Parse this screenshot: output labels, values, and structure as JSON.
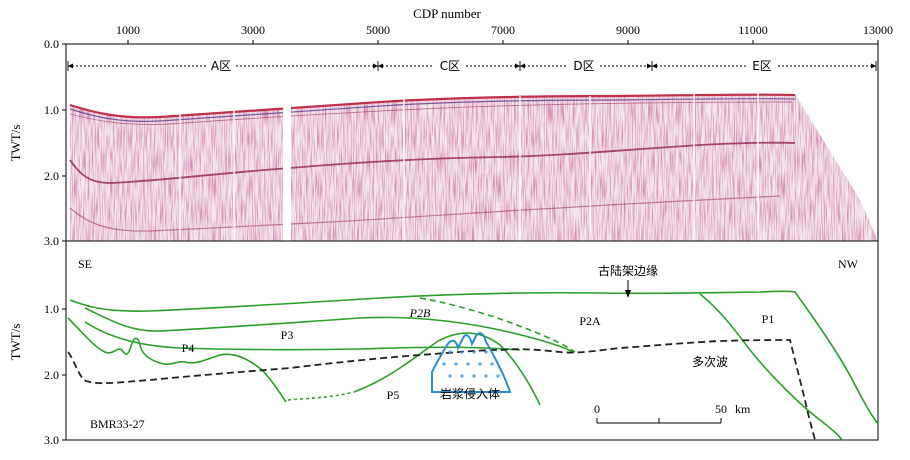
{
  "top_panel": {
    "x_axis_title": "CDP number",
    "x_ticks": [
      "1000",
      "3000",
      "5000",
      "7000",
      "9000",
      "11000",
      "13000"
    ],
    "y_axis_title": "TWT/s",
    "y_ticks": [
      "0.0",
      "1.0",
      "2.0",
      "3.0"
    ],
    "zones": [
      {
        "label": "A区"
      },
      {
        "label": "C区"
      },
      {
        "label": "D区"
      },
      {
        "label": "E区"
      }
    ]
  },
  "bottom_panel": {
    "y_axis_title": "TWT/s",
    "y_ticks": [
      "1.0",
      "2.0",
      "3.0"
    ],
    "left_direction": "SE",
    "right_direction": "NW",
    "line_name": "BMR33-27",
    "shelf_edge_label": "古陆架边缘",
    "multiple_label": "多次波",
    "intrusion_label": "岩浆侵入体",
    "units": [
      "P1",
      "P2A",
      "P2B",
      "P3",
      "P4",
      "P5"
    ],
    "scale_bar": {
      "start": "0",
      "end": "50",
      "unit": "km"
    }
  },
  "colors": {
    "horizon": "#2aa02a",
    "multiple": "#222222",
    "intrusion": "#2a8fd0",
    "seismic_trace": "#9a2a5a",
    "seismic_strong": "#c0304a"
  }
}
